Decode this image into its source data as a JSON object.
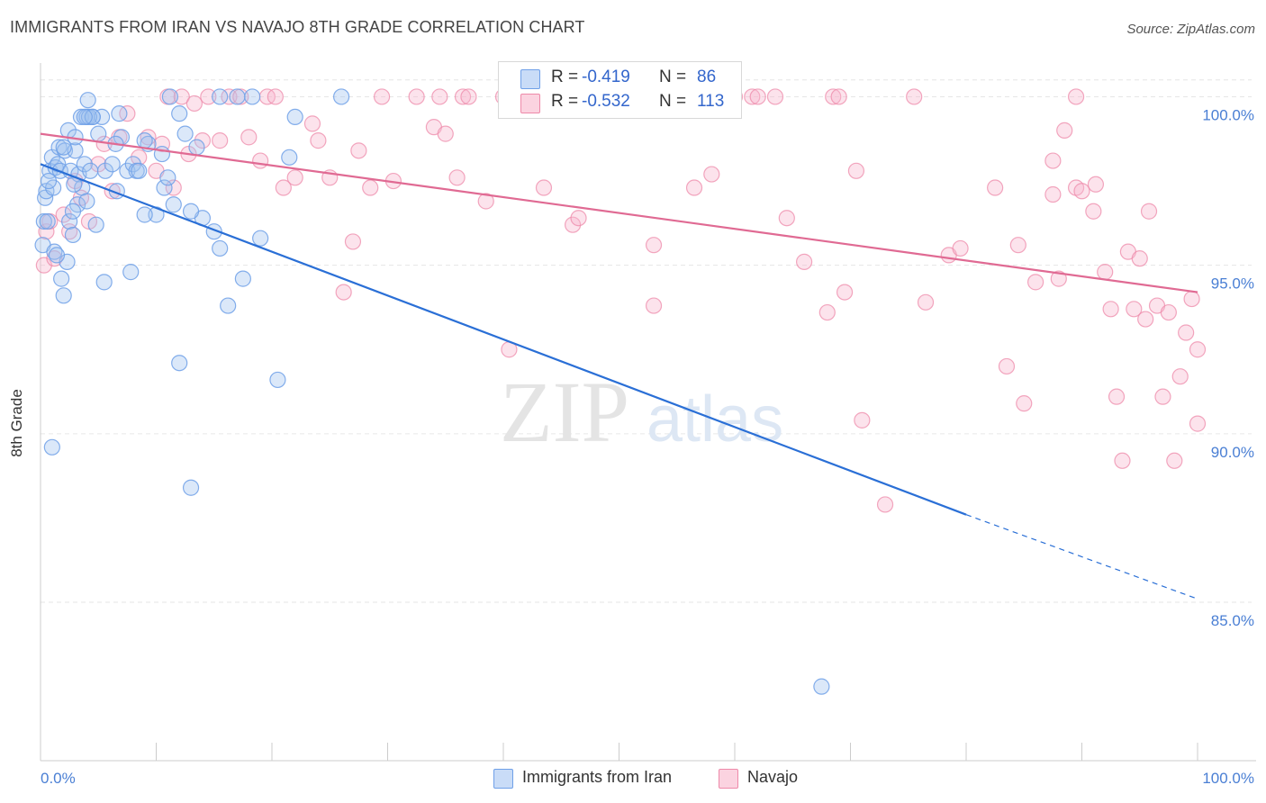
{
  "title": "IMMIGRANTS FROM IRAN VS NAVAJO 8TH GRADE CORRELATION CHART",
  "source": "Source: ZipAtlas.com",
  "watermark": {
    "zip": "ZIP",
    "atlas": "atlas"
  },
  "legend": {
    "rows": [
      {
        "r_label": "R =",
        "r_value": "-0.419",
        "n_label": "N =",
        "n_value": "86",
        "color": "#6fa0e8"
      },
      {
        "r_label": "R =",
        "r_value": "-0.532",
        "n_label": "N =",
        "n_value": "113",
        "color": "#ee89a9"
      }
    ]
  },
  "bottom_legend": [
    {
      "label": "Immigrants from Iran",
      "color": "#6fa0e8"
    },
    {
      "label": "Navajo",
      "color": "#ee89a9"
    }
  ],
  "chart_data": {
    "type": "scatter",
    "title": "IMMIGRANTS FROM IRAN VS NAVAJO 8TH GRADE CORRELATION CHART",
    "xlabel": "",
    "ylabel": "8th Grade",
    "xlim": [
      0,
      100
    ],
    "ylim": [
      80.3,
      101.0
    ],
    "x_tick_labels": [
      "0.0%",
      "100.0%"
    ],
    "y_ticks": [
      85,
      90,
      95,
      100
    ],
    "y_tick_labels": [
      "85.0%",
      "90.0%",
      "95.0%",
      "100.0%"
    ],
    "series": [
      {
        "name": "Immigrants from Iran",
        "color": "#6fa0e8",
        "line_color": "#2a6fd6",
        "trend": {
          "x0": 0,
          "y0": 98.0,
          "x1": 80,
          "y1": 87.6,
          "dash_to_x": 100,
          "dash_to_y": 85.1
        },
        "points": [
          [
            0.2,
            95.6
          ],
          [
            0.3,
            96.3
          ],
          [
            0.4,
            97.0
          ],
          [
            0.5,
            97.2
          ],
          [
            0.6,
            96.3
          ],
          [
            0.8,
            97.8
          ],
          [
            1.0,
            98.2
          ],
          [
            1.1,
            97.3
          ],
          [
            1.2,
            95.4
          ],
          [
            1.3,
            97.9
          ],
          [
            1.5,
            98.0
          ],
          [
            1.6,
            98.5
          ],
          [
            1.7,
            97.8
          ],
          [
            2.0,
            94.1
          ],
          [
            2.1,
            98.4
          ],
          [
            2.3,
            95.1
          ],
          [
            2.4,
            99.0
          ],
          [
            2.5,
            96.3
          ],
          [
            2.6,
            97.8
          ],
          [
            2.8,
            95.9
          ],
          [
            3.0,
            98.4
          ],
          [
            3.2,
            96.8
          ],
          [
            3.3,
            97.7
          ],
          [
            3.5,
            99.4
          ],
          [
            3.6,
            97.3
          ],
          [
            3.8,
            98.0
          ],
          [
            4.0,
            99.4
          ],
          [
            4.1,
            99.9
          ],
          [
            4.3,
            97.8
          ],
          [
            4.5,
            99.4
          ],
          [
            4.8,
            96.2
          ],
          [
            5.0,
            98.9
          ],
          [
            5.3,
            99.4
          ],
          [
            5.6,
            97.8
          ],
          [
            6.2,
            98.0
          ],
          [
            6.6,
            97.2
          ],
          [
            7.0,
            98.8
          ],
          [
            7.5,
            97.8
          ],
          [
            8.0,
            98.0
          ],
          [
            8.3,
            97.8
          ],
          [
            9.3,
            98.6
          ],
          [
            10.0,
            96.5
          ],
          [
            10.5,
            98.3
          ],
          [
            10.7,
            97.3
          ],
          [
            11.0,
            97.6
          ],
          [
            11.2,
            100.0
          ],
          [
            12.0,
            99.5
          ],
          [
            12.5,
            98.9
          ],
          [
            13.5,
            98.5
          ],
          [
            14.0,
            96.4
          ],
          [
            15.0,
            96.0
          ],
          [
            15.5,
            95.5
          ],
          [
            16.2,
            93.8
          ],
          [
            17.5,
            94.6
          ],
          [
            18.3,
            100.0
          ],
          [
            19.0,
            95.8
          ],
          [
            20.5,
            91.6
          ],
          [
            21.5,
            98.2
          ],
          [
            22.0,
            99.4
          ],
          [
            26.0,
            100.0
          ],
          [
            1.0,
            89.6
          ],
          [
            12.0,
            92.1
          ],
          [
            13.0,
            88.4
          ],
          [
            1.8,
            94.6
          ],
          [
            2.8,
            96.6
          ],
          [
            5.5,
            94.5
          ],
          [
            7.8,
            94.8
          ],
          [
            9.0,
            96.5
          ],
          [
            11.5,
            96.8
          ],
          [
            13.0,
            96.6
          ],
          [
            15.5,
            100.0
          ],
          [
            17.0,
            100.0
          ],
          [
            9.0,
            98.7
          ],
          [
            6.5,
            98.6
          ],
          [
            4.2,
            99.4
          ],
          [
            4.5,
            99.4
          ],
          [
            3.8,
            99.4
          ],
          [
            2.0,
            98.5
          ],
          [
            3.0,
            98.8
          ],
          [
            6.8,
            99.5
          ],
          [
            0.7,
            97.5
          ],
          [
            1.4,
            95.3
          ],
          [
            2.9,
            97.4
          ],
          [
            4.0,
            96.9
          ],
          [
            67.5,
            82.5
          ],
          [
            8.5,
            97.8
          ]
        ]
      },
      {
        "name": "Navajo",
        "color": "#ee89a9",
        "line_color": "#e06a93",
        "trend": {
          "x0": 0,
          "y0": 98.9,
          "x1": 100,
          "y1": 94.2
        },
        "points": [
          [
            0.3,
            95.0
          ],
          [
            0.5,
            96.0
          ],
          [
            0.8,
            96.3
          ],
          [
            1.2,
            95.2
          ],
          [
            2.0,
            96.5
          ],
          [
            2.5,
            96.0
          ],
          [
            3.0,
            97.5
          ],
          [
            3.5,
            97.0
          ],
          [
            4.2,
            96.3
          ],
          [
            5.0,
            98.0
          ],
          [
            5.5,
            98.6
          ],
          [
            6.2,
            97.2
          ],
          [
            6.8,
            98.8
          ],
          [
            7.5,
            99.5
          ],
          [
            8.5,
            98.2
          ],
          [
            9.3,
            98.8
          ],
          [
            10.0,
            97.8
          ],
          [
            10.5,
            98.6
          ],
          [
            11.0,
            100.0
          ],
          [
            11.5,
            97.3
          ],
          [
            12.2,
            100.0
          ],
          [
            12.8,
            98.3
          ],
          [
            13.3,
            99.8
          ],
          [
            14.0,
            98.7
          ],
          [
            14.5,
            100.0
          ],
          [
            15.5,
            98.7
          ],
          [
            16.3,
            100.0
          ],
          [
            17.3,
            100.0
          ],
          [
            18.0,
            98.8
          ],
          [
            19.0,
            98.1
          ],
          [
            19.6,
            100.0
          ],
          [
            20.3,
            100.0
          ],
          [
            21.0,
            97.3
          ],
          [
            22.0,
            97.6
          ],
          [
            23.5,
            99.2
          ],
          [
            24.0,
            98.7
          ],
          [
            25.0,
            97.6
          ],
          [
            26.2,
            94.2
          ],
          [
            27.0,
            95.7
          ],
          [
            27.5,
            98.4
          ],
          [
            28.5,
            97.3
          ],
          [
            29.5,
            100.0
          ],
          [
            30.5,
            97.5
          ],
          [
            32.5,
            100.0
          ],
          [
            34.0,
            99.1
          ],
          [
            34.5,
            100.0
          ],
          [
            35.0,
            98.9
          ],
          [
            36.0,
            97.6
          ],
          [
            36.5,
            100.0
          ],
          [
            37.0,
            100.0
          ],
          [
            38.5,
            96.9
          ],
          [
            40.0,
            100.0
          ],
          [
            40.5,
            92.5
          ],
          [
            42.0,
            100.0
          ],
          [
            43.5,
            97.3
          ],
          [
            44.5,
            100.0
          ],
          [
            46.0,
            96.2
          ],
          [
            46.5,
            96.4
          ],
          [
            52.0,
            100.0
          ],
          [
            53.0,
            95.6
          ],
          [
            53.0,
            93.8
          ],
          [
            56.5,
            97.3
          ],
          [
            58.0,
            97.7
          ],
          [
            60.0,
            100.0
          ],
          [
            61.5,
            100.0
          ],
          [
            62.0,
            100.0
          ],
          [
            63.5,
            100.0
          ],
          [
            64.5,
            96.4
          ],
          [
            66.0,
            95.1
          ],
          [
            68.0,
            93.6
          ],
          [
            68.5,
            100.0
          ],
          [
            69.0,
            100.0
          ],
          [
            69.5,
            94.2
          ],
          [
            70.5,
            97.8
          ],
          [
            71.0,
            90.4
          ],
          [
            73.0,
            87.9
          ],
          [
            75.5,
            100.0
          ],
          [
            76.5,
            93.9
          ],
          [
            78.5,
            95.3
          ],
          [
            79.5,
            95.5
          ],
          [
            82.5,
            97.3
          ],
          [
            83.5,
            92.0
          ],
          [
            84.5,
            95.6
          ],
          [
            85.0,
            90.9
          ],
          [
            86.0,
            94.5
          ],
          [
            87.5,
            97.1
          ],
          [
            87.5,
            98.1
          ],
          [
            88.0,
            94.6
          ],
          [
            88.5,
            99.0
          ],
          [
            89.5,
            97.3
          ],
          [
            90.0,
            97.2
          ],
          [
            91.0,
            96.6
          ],
          [
            91.2,
            97.4
          ],
          [
            92.0,
            94.8
          ],
          [
            92.5,
            93.7
          ],
          [
            93.0,
            91.1
          ],
          [
            93.5,
            89.2
          ],
          [
            94.0,
            95.4
          ],
          [
            94.5,
            93.7
          ],
          [
            95.0,
            95.2
          ],
          [
            95.5,
            93.4
          ],
          [
            95.8,
            96.6
          ],
          [
            96.5,
            93.8
          ],
          [
            97.0,
            91.1
          ],
          [
            97.5,
            93.6
          ],
          [
            98.0,
            89.2
          ],
          [
            98.5,
            91.7
          ],
          [
            99.0,
            93.0
          ],
          [
            99.5,
            94.0
          ],
          [
            100.0,
            92.5
          ],
          [
            100.0,
            90.3
          ],
          [
            89.5,
            100.0
          ],
          [
            58.0,
            100.0
          ]
        ]
      }
    ]
  }
}
